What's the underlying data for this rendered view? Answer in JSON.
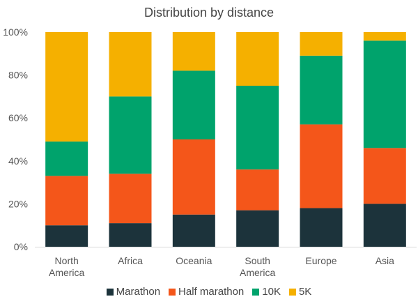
{
  "chart_data": {
    "type": "bar",
    "stacked": true,
    "title": "Distribution by distance",
    "categories": [
      "North America",
      "Africa",
      "Oceania",
      "South America",
      "Europe",
      "Asia"
    ],
    "category_lines": [
      [
        "North",
        "America"
      ],
      [
        "Africa"
      ],
      [
        "Oceania"
      ],
      [
        "South",
        "America"
      ],
      [
        "Europe"
      ],
      [
        "Asia"
      ]
    ],
    "series": [
      {
        "name": "Marathon",
        "color": "#1c333b",
        "values": [
          10,
          11,
          15,
          17,
          18,
          20
        ]
      },
      {
        "name": "Half marathon",
        "color": "#f4561a",
        "values": [
          23,
          23,
          35,
          19,
          39,
          26
        ]
      },
      {
        "name": "10K",
        "color": "#00a36c",
        "values": [
          16,
          36,
          32,
          39,
          32,
          50
        ]
      },
      {
        "name": "5K",
        "color": "#f5b000",
        "values": [
          51,
          30,
          18,
          25,
          11,
          4
        ]
      }
    ],
    "ylim": [
      0,
      100
    ],
    "yticks": [
      "0%",
      "20%",
      "40%",
      "60%",
      "80%",
      "100%"
    ],
    "ytick_values": [
      0,
      20,
      40,
      60,
      80,
      100
    ],
    "grid": false,
    "legend_position": "bottom"
  }
}
